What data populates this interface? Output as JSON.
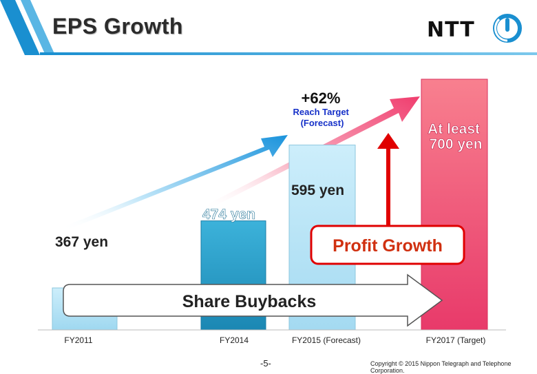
{
  "slide": {
    "title": "EPS Growth",
    "logo_text": "NTT",
    "page_number": "-5-",
    "copyright": "Copyright © 2015 Nippon Telegraph and Telephone Corporation."
  },
  "colors": {
    "fy2011": "#b8e4f5",
    "fy2014": "#2aa0c8",
    "fy2015": "#b8e4f5",
    "fy2017": "#ee4870",
    "profit_red": "#e00000",
    "accent_blue": "#1a8fd0"
  },
  "chart_data": {
    "type": "bar",
    "categories": [
      "FY2011",
      "FY2014",
      "FY2015 (Forecast)",
      "FY2017 (Target)"
    ],
    "values": [
      367,
      474,
      595,
      700
    ],
    "data_labels": [
      "367 yen",
      "474 yen",
      "595 yen",
      "At least 700 yen"
    ],
    "ylim": [
      0,
      700
    ],
    "grid": false,
    "annotations": {
      "growth_pct": "+62%",
      "reach_target": "Reach Target (Forecast)",
      "profit_growth": "Profit Growth",
      "share_buybacks": "Share Buybacks"
    }
  }
}
